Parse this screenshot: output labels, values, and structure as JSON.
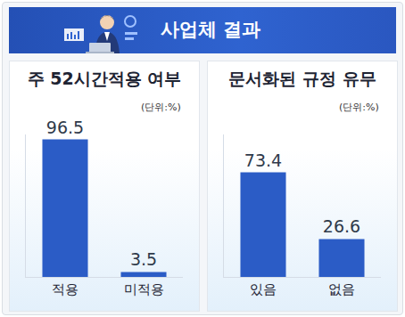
{
  "header": {
    "title": "사업체 결과"
  },
  "chart_data": [
    {
      "type": "bar",
      "title": "주 52시간적용 여부",
      "subtitle": "(단위:%)",
      "categories": [
        "적용",
        "미적용"
      ],
      "values": [
        96.5,
        3.5
      ],
      "color": "#2b5cc6",
      "ylim": [
        0,
        100
      ],
      "data_labels": true,
      "tick_labels": "x",
      "grid": false
    },
    {
      "type": "bar",
      "title": "문서화된 규정 유무",
      "subtitle": "(단위:%)",
      "categories": [
        "있음",
        "없음"
      ],
      "values": [
        73.4,
        26.6
      ],
      "color": "#2b5cc6",
      "ylim": [
        0,
        100
      ],
      "data_labels": true,
      "tick_labels": "x",
      "grid": false
    }
  ]
}
